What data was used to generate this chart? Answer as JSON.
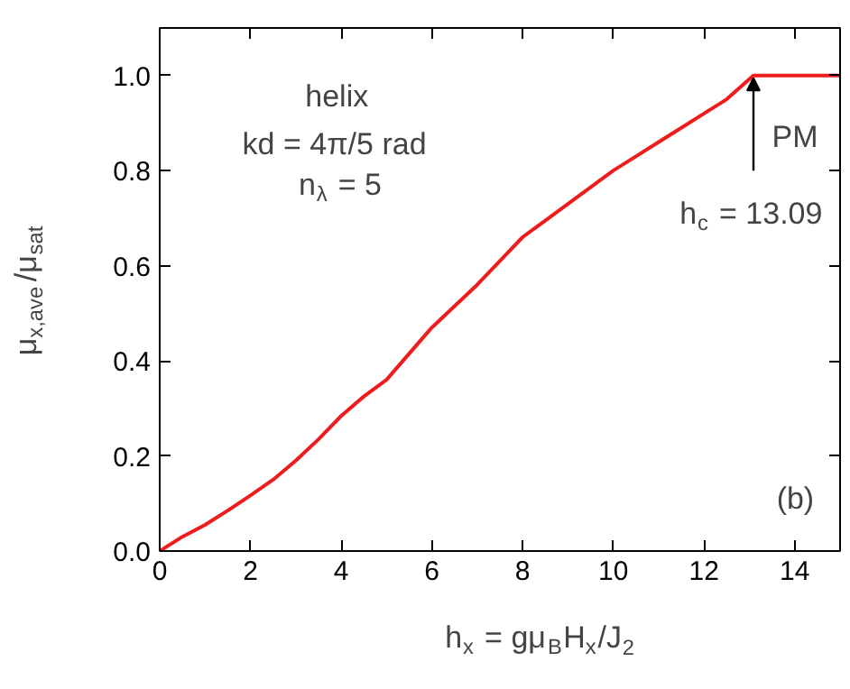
{
  "chart_data": {
    "type": "line",
    "xlabel": "h$_{x}$ = gμ$_{B}$H$_{x}$/J$_{2}$",
    "ylabel": "μ$_{x,ave}$/μ$_{sat}$",
    "x": [
      0,
      0.5,
      1,
      1.5,
      2,
      2.5,
      3,
      3.5,
      4,
      4.5,
      5,
      5.5,
      6,
      6.5,
      7,
      7.5,
      8,
      8.5,
      9,
      9.5,
      10,
      10.5,
      11,
      11.5,
      12,
      12.5,
      13.09,
      14,
      15
    ],
    "series": [
      {
        "color": "#ee1c1c",
        "values": [
          0,
          0.03,
          0.055,
          0.085,
          0.117,
          0.15,
          0.19,
          0.235,
          0.284,
          0.325,
          0.36,
          0.415,
          0.47,
          0.515,
          0.56,
          0.61,
          0.66,
          0.695,
          0.73,
          0.765,
          0.8,
          0.83,
          0.86,
          0.89,
          0.92,
          0.95,
          1.0,
          1.0,
          1.0
        ]
      }
    ],
    "xlim": [
      0,
      15
    ],
    "xticks": [
      0,
      2,
      4,
      6,
      8,
      10,
      12,
      14
    ],
    "ylim": [
      0,
      1.1
    ],
    "yticks": [
      {
        "value": 0,
        "label": "0.0"
      },
      0.2,
      0.4,
      0.6,
      0.8,
      {
        "value": 1,
        "label": "1.0"
      }
    ],
    "grid": false,
    "legend": false,
    "marker": "none",
    "line_style": "solid",
    "annotations": [
      "helix",
      "kd = 4π/5 rad",
      "n$_{λ}$ = 5",
      "PM",
      {
        "text": "h$_{c}$ = 13.09",
        "x": 13.09,
        "y": 1.0
      },
      "(b)"
    ]
  }
}
